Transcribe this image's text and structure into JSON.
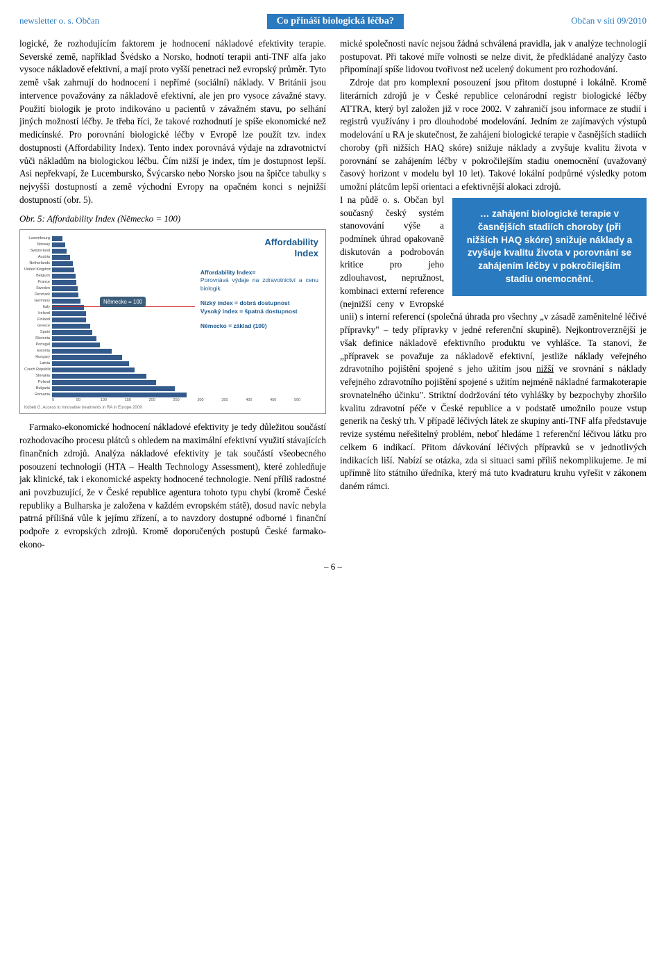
{
  "header": {
    "left": "newsletter o. s. Občan",
    "center": "Co přináší biologická léčba?",
    "right": "Občan v síti 09/2010"
  },
  "left_column": {
    "para1": "logické, že rozhodujícím faktorem je hodnocení nákladové efektivity terapie. Severské země, například Švédsko a Norsko, hodnotí terapii anti-TNF alfa jako vysoce nákladově efektivní, a mají proto vyšší penetraci než evropský průměr. Tyto země však zahrnují do hodnocení i nepřímé (sociální) náklady. V Británii jsou intervence považovány za nákladově efektivní, ale jen pro vysoce závažné stavy. Použití biologik je proto indikováno u pacientů v závažném stavu, po selhání jiných možností léčby. Je třeba říci, že takové rozhodnutí je spíše ekonomické než medicínské. Pro porovnání biologické léčby v Evropě lze použít tzv. index dostupnosti (Affordability Index). Tento index porovnává výdaje na zdravotnictví vůči nákladům na biologickou léčbu. Čím nižší je index, tím je dostupnost lepší. Asi nepřekvapí, že Lucembursko, Švýcarsko nebo Norsko jsou na špičce tabulky s nejvyšší dostupností a země východní Evropy na opačném konci s nejnižší dostupností (obr. 5).",
    "chart_caption": "Obr. 5: Affordability Index (Německo = 100)",
    "para2": "Farmako-ekonomické hodnocení nákladové efektivity je tedy důležitou součástí rozhodovacího procesu plátců s ohledem na maximální efektivní využití stávajících finančních zdrojů. Analýza nákladové efektivity je tak součástí všeobecného posouzení technologií (HTA – Health Technology Assessment), které zohledňuje jak klinické, tak i ekonomické aspekty hodnocené technologie. Není příliš radostné ani povzbuzující, že v České republice agentura tohoto typu chybí (kromě České republiky a Bulharska je založena v každém evropském státě), dosud navíc nebyla patrná přílišná vůle k jejímu zřízení, a to navzdory dostupné odborné i finanční podpoře z evropských zdrojů. Kromě doporučených postupů České farmako-ekono-"
  },
  "chart": {
    "type": "bar",
    "title_main": "Affordability",
    "title_sub": "Index",
    "ref_label": "Německo = 100",
    "legend1_head": "Affordability Index=",
    "legend1_body": "Porovnává výdaje na zdravotnictví a cenu biologik.",
    "legend2_a": "Nízký index = dobrá dostupnost",
    "legend2_b": "Vysoký index = špatná dostupnost",
    "legend3": "Německo = základ (100)",
    "source": "Kobelt G. Access to innovative treatments in RA in Europe 2009",
    "bar_color": "#335a8a",
    "ref_color": "#d02020",
    "xlim_max": 500,
    "xticks": [
      "0",
      "50",
      "100",
      "150",
      "200",
      "250",
      "300",
      "350",
      "400",
      "450",
      "500"
    ],
    "countries": [
      {
        "label": "Luxembourg",
        "value": 37
      },
      {
        "label": "Norway",
        "value": 47
      },
      {
        "label": "Switzerland",
        "value": 52
      },
      {
        "label": "Austria",
        "value": 64
      },
      {
        "label": "Netherlands",
        "value": 72
      },
      {
        "label": "United Kingdom",
        "value": 78
      },
      {
        "label": "Belgium",
        "value": 82
      },
      {
        "label": "France",
        "value": 85
      },
      {
        "label": "Sweden",
        "value": 89
      },
      {
        "label": "Denmark",
        "value": 93
      },
      {
        "label": "Germany",
        "value": 100
      },
      {
        "label": "Italy",
        "value": 112
      },
      {
        "label": "Ireland",
        "value": 118
      },
      {
        "label": "Finland",
        "value": 120
      },
      {
        "label": "Greece",
        "value": 134
      },
      {
        "label": "Spain",
        "value": 140
      },
      {
        "label": "Slovenia",
        "value": 155
      },
      {
        "label": "Portugal",
        "value": 168
      },
      {
        "label": "Estonia",
        "value": 210
      },
      {
        "label": "Hungary",
        "value": 245
      },
      {
        "label": "Latvia",
        "value": 270
      },
      {
        "label": "Czech Republic",
        "value": 290
      },
      {
        "label": "Slovakia",
        "value": 330
      },
      {
        "label": "Poland",
        "value": 365
      },
      {
        "label": "Bulgaria",
        "value": 430
      },
      {
        "label": "Romania",
        "value": 470
      }
    ]
  },
  "right_column": {
    "para1": "mické společnosti navíc nejsou žádná schválená pravidla, jak v analýze technologií postupovat. Při takové míře volnosti se nelze divit, že předkládané analýzy často připomínají spíše lidovou tvořivost než ucelený dokument pro rozhodování.",
    "para2_a": "Zdroje dat pro komplexní posouzení jsou přitom dostupné i lokálně. Kromě literárních zdrojů je v České republice celonárodní registr biologické léčby ATTRA, který byl založen již v roce 2002. V zahraničí jsou informace ze studií i registrů využívány i pro dlouhodobé modelování. Jedním ze zajímavých výstupů modelování u RA je skutečnost, že zahájení biologické terapie v časnějších stadiích choroby (při nižších HAQ skóre) snižuje náklady a zvyšuje kvalitu života v porovnání se zahájením léčby v pokročilejším stadiu onemocnění (uvažovaný časový horizont v modelu byl 10 let). Takové lokální podpůrné výsledky potom umožní plátcům lepší orientaci a efektivnější alokaci zdrojů.",
    "para3_a": "I na půdě o. s. Občan byl současný český systém stanovování výše a podmínek úhrad opakovaně diskutován a podrobován kritice pro jeho zdlouhavost, nepružnost, kombinaci externí reference (nejnižší ceny v Evropské unii) s interní referencí (společná úhrada pro všechny „v zásadě zaměnitelné léčivé přípravky\" – tedy přípravky v jedné referenční skupině). Nejkontroverznější je však definice nákladově efektivního produktu ve vyhlášce. Ta stanoví, že „přípravek se považuje za nákladově efektivní, jestliže náklady veřejného zdravotního pojištění spojené s jeho užitím jsou ",
    "para3_u": "nižší",
    "para3_b": " ve srovnání s náklady veřejného zdravotního pojištění spojené s užitím nejméně nákladné farmakoterapie srovnatelného účinku\". Striktní dodržování této vyhlášky by bezpochyby zhoršilo kvalitu zdravotní péče v České republice a v podstatě umožnilo pouze vstup generik na český trh. V případě léčivých látek ze skupiny anti-TNF alfa představuje revize systému neřešitelný problém, neboť hledáme 1 referenční léčivou látku pro celkem 6 indikací. Přitom dávkování léčivých přípravků se v  jednotlivých indikacích liší. Nabízí se otázka, zda si situaci sami příliš nekomplikujeme. Je mi upřímně líto státního úředníka, který má tuto kvadraturu kruhu vyřešit v zákonem daném rámci."
  },
  "callout": {
    "text": "… zahájení biologické terapie v časnějších stadiích choroby (při nižších HAQ skóre) snižuje náklady a zvyšuje kvalitu života v porovnání se zahájením léčby v pokročilejším stadiu onemocnění."
  },
  "page_number": "– 6 –"
}
